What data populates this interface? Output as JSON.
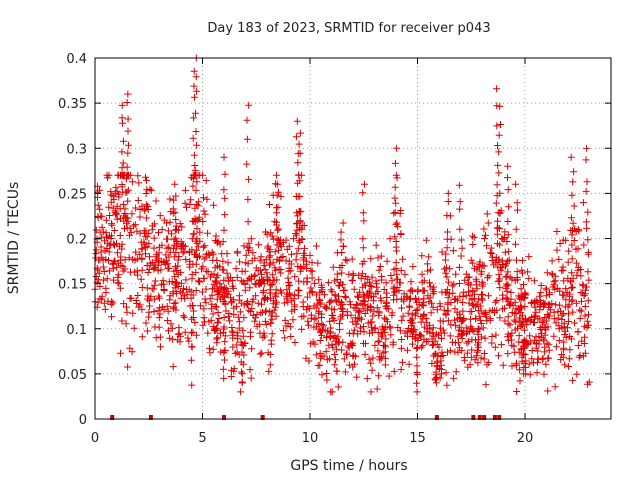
{
  "chart_data": {
    "type": "scatter",
    "title": "Day 183 of 2023, SRMTID for receiver p043",
    "xlabel": "GPS time / hours",
    "ylabel": "SRMTID / TECUs",
    "xlim": [
      0,
      24
    ],
    "ylim": [
      0,
      0.4
    ],
    "x_ticks": [
      0,
      5,
      10,
      15,
      20
    ],
    "y_ticks": [
      0,
      0.05,
      0.1,
      0.15,
      0.2,
      0.25,
      0.3,
      0.35,
      0.4
    ],
    "x_tick_labels": [
      "0",
      "5",
      "10",
      "15",
      "20"
    ],
    "y_tick_labels": [
      "0",
      "0.05",
      "0.1",
      "0.15",
      "0.2",
      "0.25",
      "0.3",
      "0.35",
      "0.4"
    ],
    "grid": true,
    "marker": "+",
    "color": "#e00000",
    "profile": [
      [
        0.0,
        0.18,
        0.04
      ],
      [
        0.5,
        0.18,
        0.04
      ],
      [
        1.0,
        0.2,
        0.06
      ],
      [
        1.4,
        0.23,
        0.08
      ],
      [
        2.0,
        0.19,
        0.05
      ],
      [
        2.5,
        0.17,
        0.05
      ],
      [
        3.0,
        0.17,
        0.04
      ],
      [
        3.5,
        0.16,
        0.04
      ],
      [
        4.0,
        0.15,
        0.04
      ],
      [
        4.6,
        0.2,
        0.08
      ],
      [
        5.0,
        0.19,
        0.05
      ],
      [
        5.5,
        0.15,
        0.04
      ],
      [
        6.0,
        0.13,
        0.04
      ],
      [
        6.5,
        0.11,
        0.04
      ],
      [
        7.0,
        0.13,
        0.04
      ],
      [
        7.5,
        0.14,
        0.04
      ],
      [
        8.0,
        0.14,
        0.04
      ],
      [
        8.5,
        0.18,
        0.05
      ],
      [
        9.0,
        0.15,
        0.04
      ],
      [
        9.5,
        0.17,
        0.06
      ],
      [
        10.0,
        0.14,
        0.04
      ],
      [
        10.5,
        0.11,
        0.03
      ],
      [
        11.0,
        0.1,
        0.03
      ],
      [
        11.5,
        0.12,
        0.04
      ],
      [
        12.0,
        0.12,
        0.04
      ],
      [
        12.5,
        0.12,
        0.03
      ],
      [
        13.0,
        0.12,
        0.04
      ],
      [
        13.5,
        0.12,
        0.04
      ],
      [
        14.0,
        0.16,
        0.06
      ],
      [
        14.5,
        0.11,
        0.03
      ],
      [
        15.0,
        0.11,
        0.03
      ],
      [
        15.5,
        0.13,
        0.04
      ],
      [
        16.0,
        0.08,
        0.03
      ],
      [
        16.5,
        0.13,
        0.05
      ],
      [
        17.0,
        0.1,
        0.03
      ],
      [
        17.5,
        0.12,
        0.04
      ],
      [
        18.0,
        0.12,
        0.04
      ],
      [
        18.5,
        0.16,
        0.07
      ],
      [
        19.0,
        0.15,
        0.05
      ],
      [
        19.5,
        0.1,
        0.04
      ],
      [
        20.0,
        0.11,
        0.04
      ],
      [
        20.5,
        0.1,
        0.03
      ],
      [
        21.0,
        0.11,
        0.04
      ],
      [
        21.5,
        0.13,
        0.04
      ],
      [
        22.0,
        0.13,
        0.05
      ],
      [
        22.5,
        0.14,
        0.06
      ],
      [
        23.0,
        0.13,
        0.04
      ]
    ],
    "peaks": [
      [
        1.3,
        0.35
      ],
      [
        1.5,
        0.36
      ],
      [
        4.6,
        0.39
      ],
      [
        4.7,
        0.4
      ],
      [
        7.1,
        0.35
      ],
      [
        9.4,
        0.33
      ],
      [
        9.5,
        0.32
      ],
      [
        14.0,
        0.3
      ],
      [
        18.7,
        0.37
      ],
      [
        18.8,
        0.35
      ],
      [
        19.2,
        0.28
      ],
      [
        22.2,
        0.29
      ],
      [
        22.9,
        0.3
      ],
      [
        6.0,
        0.29
      ],
      [
        2.4,
        0.27
      ],
      [
        8.5,
        0.27
      ],
      [
        17.0,
        0.26
      ],
      [
        12.5,
        0.26
      ],
      [
        3.7,
        0.26
      ],
      [
        16.4,
        0.25
      ],
      [
        11.5,
        0.22
      ],
      [
        19.6,
        0.26
      ],
      [
        0.1,
        0.26
      ]
    ],
    "lows": [
      [
        6.8,
        0.03
      ],
      [
        6.9,
        0.04
      ],
      [
        15.0,
        0.03
      ],
      [
        15.9,
        0.04
      ],
      [
        16.1,
        0.05
      ],
      [
        19.9,
        0.05
      ],
      [
        20.0,
        0.05
      ],
      [
        11.2,
        0.06
      ],
      [
        4.5,
        0.065
      ],
      [
        13.5,
        0.06
      ],
      [
        17.8,
        0.07
      ],
      [
        21.8,
        0.06
      ],
      [
        6.0,
        0.045
      ],
      [
        3.0,
        0.08
      ],
      [
        8.2,
        0.06
      ]
    ],
    "gap_markers_x": [
      0.8,
      2.6,
      6.0,
      7.8,
      15.9,
      17.6,
      17.9,
      18.1,
      18.6,
      18.8
    ]
  }
}
